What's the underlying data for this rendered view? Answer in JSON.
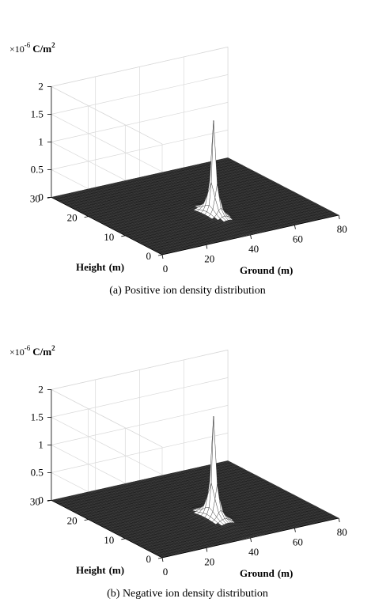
{
  "chart_data": [
    {
      "type": "surface",
      "caption": "(a) Positive ion density distribution",
      "unit_prefix": "×10",
      "unit_exponent": "-6",
      "unit": "C/m",
      "unit_power": "2",
      "xlabel": "Ground",
      "xunit": "(m)",
      "ylabel": "Height",
      "yunit": "(m)",
      "xlim": [
        0,
        80
      ],
      "ylim": [
        0,
        30
      ],
      "zlim": [
        0,
        2
      ],
      "xticks": [
        "0",
        "20",
        "40",
        "60",
        "80"
      ],
      "yticks": [
        "0",
        "10",
        "20",
        "30"
      ],
      "zticks": [
        "0",
        "0.5",
        "1",
        "1.5",
        "2"
      ],
      "peak": {
        "x": 40,
        "y": 10,
        "z": 1.72
      },
      "grid": true
    },
    {
      "type": "surface",
      "caption": "(b) Negative ion density distribution",
      "unit_prefix": "×10",
      "unit_exponent": "-6",
      "unit": "C/m",
      "unit_power": "2",
      "xlabel": "Ground",
      "xunit": "(m)",
      "ylabel": "Height",
      "yunit": "(m)",
      "xlim": [
        0,
        80
      ],
      "ylim": [
        0,
        30
      ],
      "zlim": [
        0,
        2
      ],
      "xticks": [
        "0",
        "20",
        "40",
        "60",
        "80"
      ],
      "yticks": [
        "0",
        "10",
        "20",
        "30"
      ],
      "zticks": [
        "0",
        "0.5",
        "1",
        "1.5",
        "2"
      ],
      "peak": {
        "x": 40,
        "y": 10,
        "z": 1.85
      },
      "grid": true
    }
  ]
}
